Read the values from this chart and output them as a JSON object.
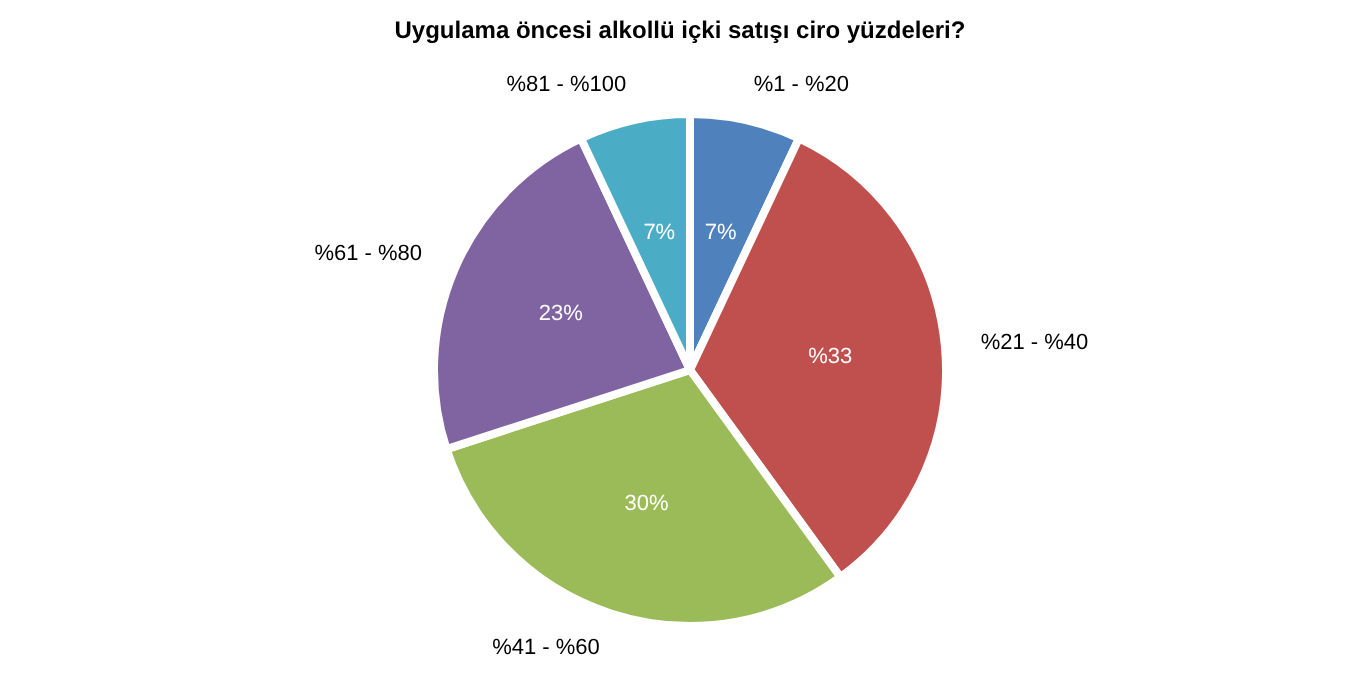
{
  "chart_data": {
    "type": "pie",
    "title": "Uygulama öncesi alkollü içki satışı ciro yüzdeleri?",
    "categories": [
      "%1 - %20",
      "%21 - %40",
      "%41 - %60",
      "%61 - %80",
      "%81 - %100"
    ],
    "values": [
      7,
      33,
      30,
      23,
      7
    ],
    "value_labels": [
      "7%",
      "%33",
      "30%",
      "23%",
      "7%"
    ],
    "colors": [
      "#4f81bd",
      "#c0504d",
      "#9bbb59",
      "#8064a2",
      "#4bacc6"
    ]
  }
}
